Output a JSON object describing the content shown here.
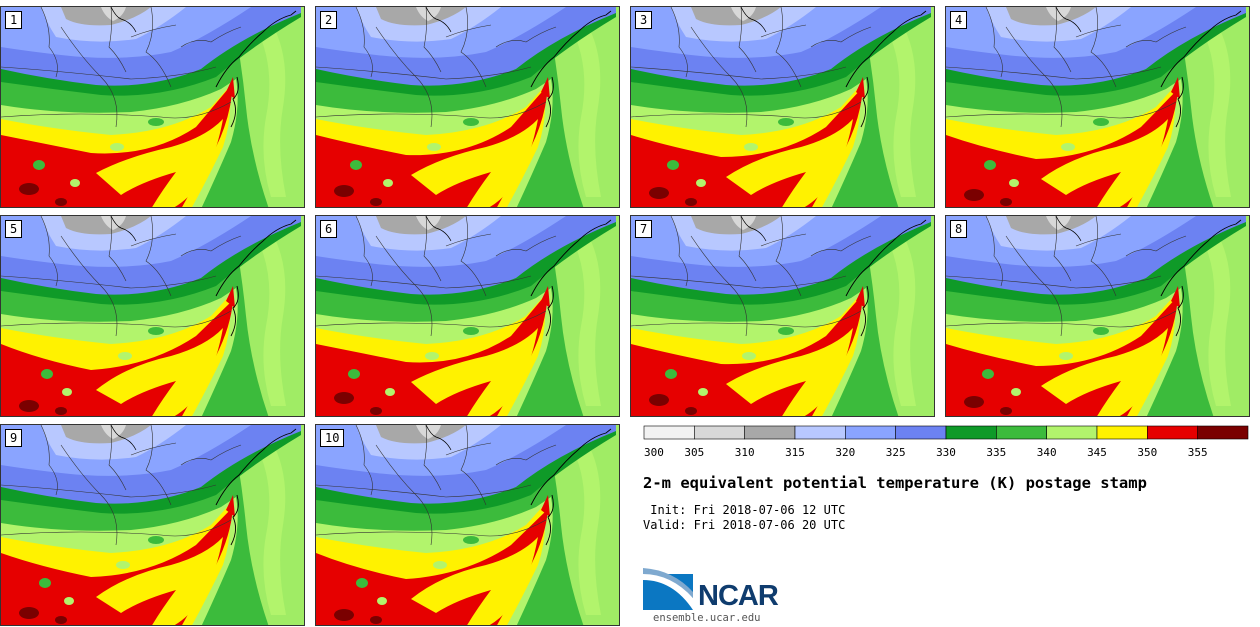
{
  "panels": [
    "1",
    "2",
    "3",
    "4",
    "5",
    "6",
    "7",
    "8",
    "9",
    "10"
  ],
  "colorbar": {
    "colors": [
      "#f2f2f2",
      "#d8d8d8",
      "#a8a8a8",
      "#b8c8ff",
      "#8aa4ff",
      "#6c82f2",
      "#0f9a28",
      "#3cbb3c",
      "#b2f46c",
      "#fff200",
      "#e60000",
      "#7a0000"
    ],
    "labels": [
      "300",
      "305",
      "310",
      "315",
      "320",
      "325",
      "330",
      "335",
      "340",
      "345",
      "350",
      "355"
    ]
  },
  "title": "2-m equivalent potential temperature (K) postage stamp",
  "init": " Init: Fri 2018-07-06 12 UTC",
  "valid": "Valid: Fri 2018-07-06 20 UTC",
  "logo": {
    "text": "NCAR",
    "site": "ensemble.ucar.edu"
  }
}
